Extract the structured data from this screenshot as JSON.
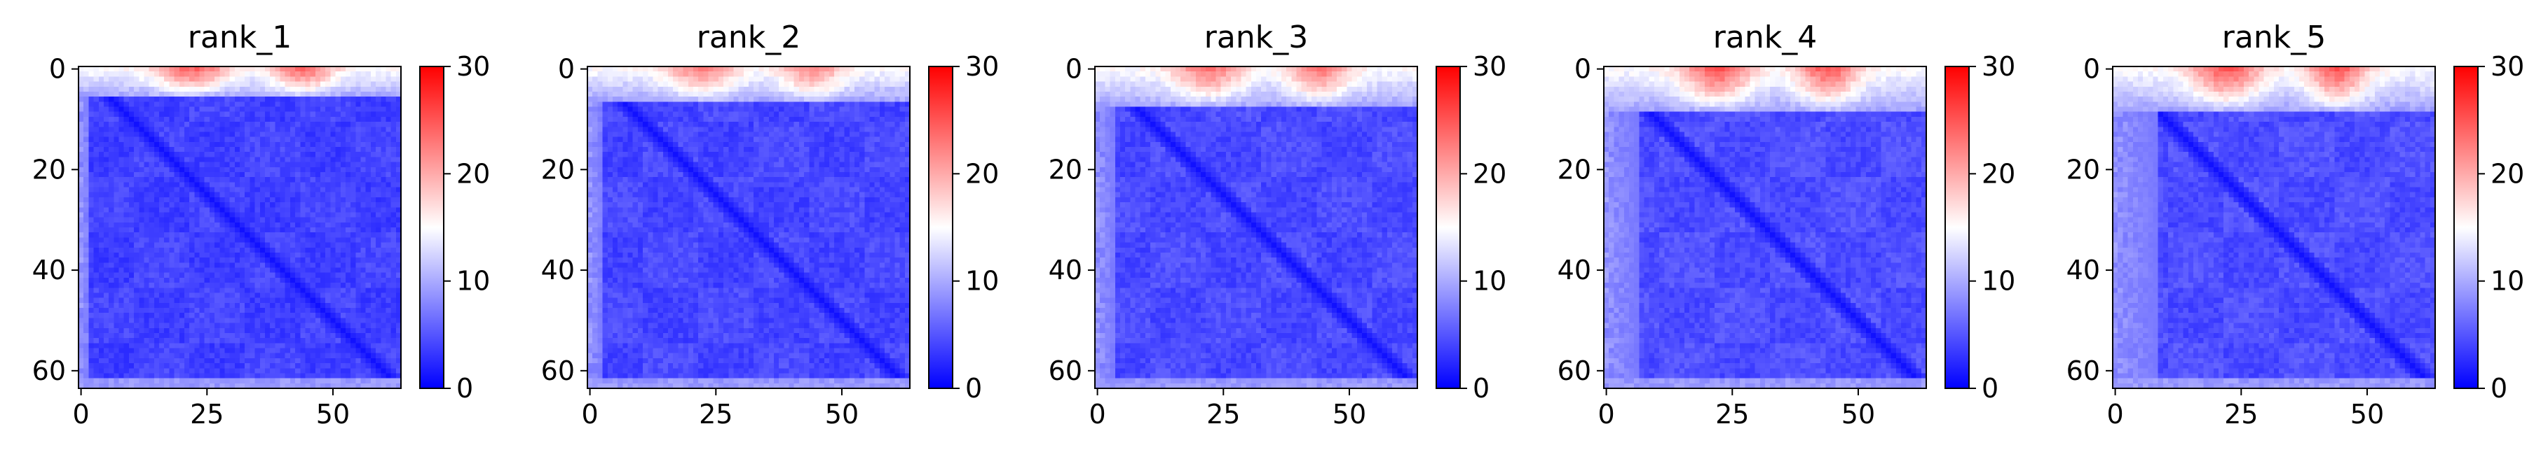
{
  "chart_data": [
    {
      "type": "heatmap",
      "title": "rank_1",
      "grid_size": 64,
      "x_ticks": [
        0,
        25,
        50
      ],
      "y_ticks": [
        0,
        20,
        40,
        60
      ],
      "colorbar_ticks": [
        0,
        10,
        20,
        30
      ],
      "vmin": 0,
      "vmax": 30,
      "colormap": [
        "#0000ff",
        "#ffffff",
        "#ff0000"
      ],
      "pattern": {
        "top_band_max": 24,
        "top_band_rows": 4,
        "left_band": 2,
        "diagonal": 1,
        "background": 3.5
      }
    },
    {
      "type": "heatmap",
      "title": "rank_2",
      "grid_size": 64,
      "x_ticks": [
        0,
        25,
        50
      ],
      "y_ticks": [
        0,
        20,
        40,
        60
      ],
      "colorbar_ticks": [
        0,
        10,
        20,
        30
      ],
      "vmin": 0,
      "vmax": 30,
      "colormap": [
        "#0000ff",
        "#ffffff",
        "#ff0000"
      ],
      "pattern": {
        "top_band_max": 22,
        "top_band_rows": 5,
        "left_band": 3,
        "diagonal": 1,
        "background": 3.8
      }
    },
    {
      "type": "heatmap",
      "title": "rank_3",
      "grid_size": 64,
      "x_ticks": [
        0,
        25,
        50
      ],
      "y_ticks": [
        0,
        20,
        40,
        60
      ],
      "colorbar_ticks": [
        0,
        10,
        20,
        30
      ],
      "vmin": 0,
      "vmax": 30,
      "colormap": [
        "#0000ff",
        "#ffffff",
        "#ff0000"
      ],
      "pattern": {
        "top_band_max": 23,
        "top_band_rows": 6,
        "left_band": 4,
        "diagonal": 1,
        "background": 4.0
      }
    },
    {
      "type": "heatmap",
      "title": "rank_4",
      "grid_size": 64,
      "x_ticks": [
        0,
        25,
        50
      ],
      "y_ticks": [
        0,
        20,
        40,
        60
      ],
      "colorbar_ticks": [
        0,
        10,
        20,
        30
      ],
      "vmin": 0,
      "vmax": 30,
      "colormap": [
        "#0000ff",
        "#ffffff",
        "#ff0000"
      ],
      "pattern": {
        "top_band_max": 25,
        "top_band_rows": 7,
        "left_band": 7,
        "diagonal": 1,
        "background": 4.2
      }
    },
    {
      "type": "heatmap",
      "title": "rank_5",
      "grid_size": 64,
      "x_ticks": [
        0,
        25,
        50
      ],
      "y_ticks": [
        0,
        20,
        40,
        60
      ],
      "colorbar_ticks": [
        0,
        10,
        20,
        30
      ],
      "vmin": 0,
      "vmax": 30,
      "colormap": [
        "#0000ff",
        "#ffffff",
        "#ff0000"
      ],
      "pattern": {
        "top_band_max": 25,
        "top_band_rows": 7,
        "left_band": 9,
        "diagonal": 1,
        "background": 4.2
      }
    }
  ]
}
